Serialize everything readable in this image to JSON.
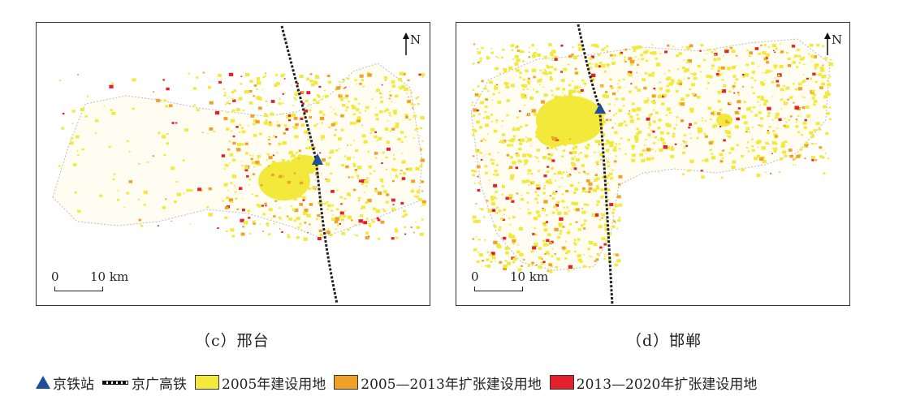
{
  "panels": [
    {
      "id": "c",
      "caption": "（c）邢台",
      "north_label": "N",
      "scale_zero": "0",
      "scale_ten": "10 km"
    },
    {
      "id": "d",
      "caption": "（d）邯郸",
      "north_label": "N",
      "scale_zero": "0",
      "scale_ten": "10 km"
    }
  ],
  "legend": {
    "station": {
      "label": "京铁站",
      "icon": "triangle-icon",
      "color": "#1f4e9b"
    },
    "railway": {
      "label": "京广高铁",
      "icon": "dashed-rail-icon"
    },
    "land_2005": {
      "label": "2005年建设用地",
      "color": "#f2e93a"
    },
    "land_2005_2013": {
      "label": "2005—2013年扩张建设用地",
      "color": "#f0a228"
    },
    "land_2013_2020": {
      "label": "2013—2020年扩张建设用地",
      "color": "#e4202a"
    }
  }
}
